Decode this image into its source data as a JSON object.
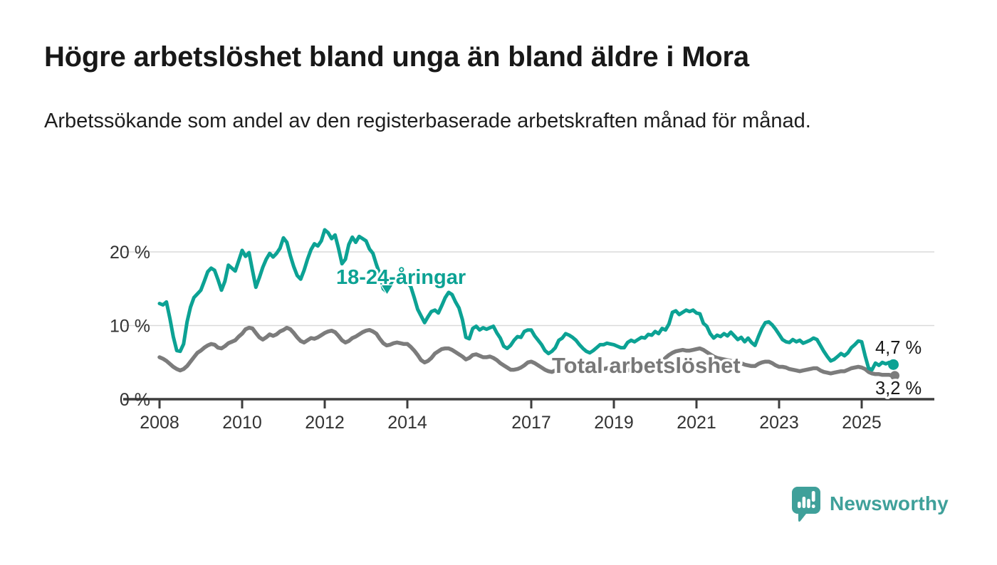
{
  "page": {
    "title": "Högre arbetslöshet bland unga än bland äldre i Mora",
    "subtitle": "Arbetssökande som andel av den registerbaserade arbetskraften månad för månad."
  },
  "colors": {
    "teal": "#0CA294",
    "gray": "#7C7C7C",
    "gray_label": "#787878",
    "axis": "#3D3D3D",
    "grid": "#DADADA",
    "tick_text": "#333333",
    "value_text": "#1A1A1A",
    "logo_teal": "#3FA09A"
  },
  "footer": {
    "brand": "Newsworthy",
    "logo_icon": "bar-chart-speech-bubble-icon"
  },
  "chart_data": {
    "type": "line",
    "title": "Högre arbetslöshet bland unga än bland äldre i Mora",
    "subtitle": "Arbetssökande som andel av den registerbaserade arbetskraften månad för månad.",
    "unit": "%",
    "grid": "horizontal",
    "legend_position": "inline-labels",
    "x_start_year": 2008,
    "x_step_months": 1,
    "xlim": [
      2007.1,
      2026.8
    ],
    "ylim": [
      0,
      24
    ],
    "x_ticks": [
      {
        "value": 2008,
        "label": "2008"
      },
      {
        "value": 2010,
        "label": "2010"
      },
      {
        "value": 2012,
        "label": "2012"
      },
      {
        "value": 2014,
        "label": "2014"
      },
      {
        "value": 2017,
        "label": "2017"
      },
      {
        "value": 2019,
        "label": "2019"
      },
      {
        "value": 2021,
        "label": "2021"
      },
      {
        "value": 2023,
        "label": "2023"
      },
      {
        "value": 2025,
        "label": "2025"
      }
    ],
    "y_ticks": [
      {
        "value": 0,
        "label": "0 %"
      },
      {
        "value": 10,
        "label": "10 %"
      },
      {
        "value": 20,
        "label": "20 %"
      }
    ],
    "series": [
      {
        "name": "Total arbetslöshet",
        "color_key": "gray",
        "end_label": "3,2 %",
        "end_value": 3.2,
        "values": [
          5.7,
          5.5,
          5.2,
          4.8,
          4.4,
          4.1,
          3.9,
          4.1,
          4.5,
          5.1,
          5.7,
          6.3,
          6.6,
          7.0,
          7.3,
          7.5,
          7.4,
          7.0,
          6.9,
          7.2,
          7.6,
          7.8,
          8.0,
          8.5,
          8.9,
          9.5,
          9.7,
          9.6,
          9.0,
          8.4,
          8.1,
          8.4,
          8.8,
          8.6,
          8.8,
          9.2,
          9.4,
          9.7,
          9.5,
          9.0,
          8.4,
          7.9,
          7.7,
          8.0,
          8.3,
          8.2,
          8.4,
          8.7,
          9.0,
          9.2,
          9.3,
          9.1,
          8.6,
          8.0,
          7.7,
          7.9,
          8.3,
          8.5,
          8.8,
          9.1,
          9.3,
          9.4,
          9.2,
          8.9,
          8.2,
          7.6,
          7.3,
          7.4,
          7.6,
          7.7,
          7.6,
          7.5,
          7.5,
          7.1,
          6.6,
          6.0,
          5.3,
          5.0,
          5.2,
          5.6,
          6.2,
          6.5,
          6.8,
          6.9,
          6.9,
          6.7,
          6.4,
          6.1,
          5.8,
          5.4,
          5.6,
          6.0,
          6.1,
          5.9,
          5.7,
          5.7,
          5.8,
          5.6,
          5.3,
          4.9,
          4.6,
          4.3,
          4.0,
          4.0,
          4.1,
          4.3,
          4.6,
          5.0,
          5.1,
          4.9,
          4.6,
          4.3,
          4.0,
          3.8,
          3.7,
          3.9,
          4.1,
          4.3,
          4.5,
          4.6,
          4.6,
          4.4,
          4.2,
          3.9,
          3.7,
          3.6,
          3.7,
          3.9,
          4.0,
          4.1,
          4.2,
          4.2,
          4.2,
          4.1,
          4.0,
          3.9,
          3.9,
          4.0,
          4.1,
          4.2,
          4.3,
          4.4,
          4.5,
          4.6,
          4.7,
          4.8,
          5.1,
          5.6,
          6.0,
          6.3,
          6.5,
          6.6,
          6.7,
          6.6,
          6.6,
          6.7,
          6.8,
          6.9,
          6.7,
          6.4,
          6.1,
          5.8,
          5.6,
          5.5,
          5.4,
          5.3,
          5.2,
          5.1,
          5.0,
          4.9,
          4.7,
          4.6,
          4.5,
          4.5,
          4.8,
          5.0,
          5.1,
          5.1,
          4.9,
          4.6,
          4.4,
          4.4,
          4.3,
          4.1,
          4.0,
          3.9,
          3.8,
          3.9,
          4.0,
          4.1,
          4.2,
          4.2,
          3.9,
          3.7,
          3.6,
          3.5,
          3.6,
          3.7,
          3.8,
          3.8,
          4.0,
          4.2,
          4.3,
          4.4,
          4.3,
          4.1,
          3.7,
          3.5,
          3.4,
          3.4,
          3.3,
          3.3,
          3.3,
          3.2
        ]
      },
      {
        "name": "18-24-åringar",
        "color_key": "teal",
        "end_label": "4,7 %",
        "end_value": 4.7,
        "values": [
          13.0,
          12.8,
          13.2,
          11.0,
          8.5,
          6.6,
          6.5,
          7.5,
          10.5,
          12.5,
          13.8,
          14.3,
          14.8,
          16.0,
          17.3,
          17.8,
          17.5,
          16.2,
          14.8,
          16.0,
          18.2,
          17.8,
          17.4,
          18.8,
          20.2,
          19.4,
          19.9,
          17.5,
          15.2,
          16.5,
          17.9,
          19.0,
          19.8,
          19.3,
          19.8,
          20.5,
          21.9,
          21.3,
          19.5,
          18.0,
          16.8,
          16.3,
          17.5,
          19.0,
          20.3,
          21.1,
          20.8,
          21.5,
          23.0,
          22.6,
          21.8,
          22.3,
          20.5,
          18.4,
          19.0,
          21.0,
          22.0,
          21.3,
          22.1,
          21.8,
          21.5,
          20.4,
          19.8,
          18.3,
          17.0,
          15.0,
          14.6,
          15.5,
          16.4,
          16.0,
          16.6,
          16.2,
          15.8,
          15.3,
          13.8,
          12.2,
          11.3,
          10.4,
          11.2,
          11.9,
          12.1,
          11.7,
          12.7,
          13.8,
          14.5,
          14.2,
          13.2,
          12.4,
          10.8,
          8.4,
          8.2,
          9.6,
          9.9,
          9.4,
          9.7,
          9.5,
          9.7,
          9.9,
          9.0,
          8.3,
          7.2,
          6.9,
          7.3,
          8.0,
          8.5,
          8.4,
          9.2,
          9.4,
          9.4,
          8.6,
          8.0,
          7.4,
          6.6,
          6.2,
          6.5,
          7.0,
          8.0,
          8.3,
          8.9,
          8.7,
          8.4,
          8.0,
          7.4,
          6.9,
          6.5,
          6.3,
          6.6,
          7.0,
          7.4,
          7.4,
          7.6,
          7.5,
          7.4,
          7.2,
          7.0,
          7.0,
          7.7,
          8.0,
          7.8,
          8.1,
          8.4,
          8.3,
          8.8,
          8.7,
          9.2,
          8.9,
          9.6,
          9.4,
          10.2,
          11.8,
          12.0,
          11.5,
          11.8,
          12.1,
          11.9,
          12.1,
          11.7,
          11.6,
          10.3,
          9.9,
          8.9,
          8.3,
          8.7,
          8.5,
          8.9,
          8.6,
          9.1,
          8.6,
          8.1,
          8.4,
          7.8,
          8.3,
          7.7,
          7.3,
          8.5,
          9.6,
          10.4,
          10.5,
          10.1,
          9.5,
          8.8,
          8.1,
          7.8,
          7.7,
          8.1,
          7.8,
          8.0,
          7.6,
          7.8,
          8.0,
          8.3,
          8.1,
          7.3,
          6.5,
          5.8,
          5.2,
          5.4,
          5.8,
          6.2,
          5.9,
          6.3,
          7.0,
          7.4,
          7.9,
          7.8,
          5.9,
          4.2,
          4.0,
          4.9,
          4.6,
          5.0,
          4.8,
          5.0,
          4.7
        ]
      }
    ],
    "annotations": [
      {
        "text": "Total arbetslöshet",
        "series": "Total arbetslöshet"
      },
      {
        "text": "18-24-åringar",
        "series": "18-24-åringar",
        "arrow": "down"
      }
    ]
  }
}
